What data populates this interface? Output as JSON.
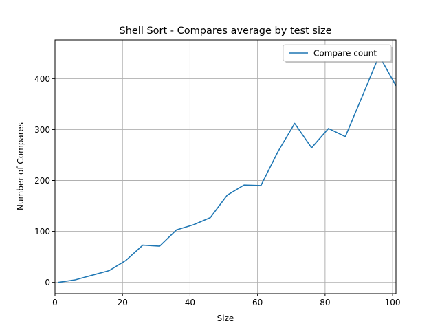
{
  "chart_data": {
    "type": "line",
    "title": "Shell Sort - Compares average by test size",
    "xlabel": "Size",
    "ylabel": "Number of Compares",
    "xlim": [
      0,
      101
    ],
    "ylim": [
      -22,
      476
    ],
    "xticks": [
      0,
      20,
      40,
      60,
      80,
      100
    ],
    "yticks": [
      0,
      100,
      200,
      300,
      400
    ],
    "grid": true,
    "legend_position": "top-right",
    "series": [
      {
        "name": "Compare count",
        "color": "#1f77b4",
        "x": [
          1,
          6,
          11,
          16,
          21,
          26,
          31,
          36,
          41,
          46,
          51,
          56,
          61,
          66,
          71,
          76,
          81,
          86,
          91,
          96,
          101
        ],
        "y": [
          0,
          5,
          14,
          23,
          43,
          73,
          71,
          103,
          113,
          127,
          171,
          191,
          190,
          256,
          312,
          264,
          302,
          286,
          365,
          445,
          386
        ]
      }
    ]
  }
}
